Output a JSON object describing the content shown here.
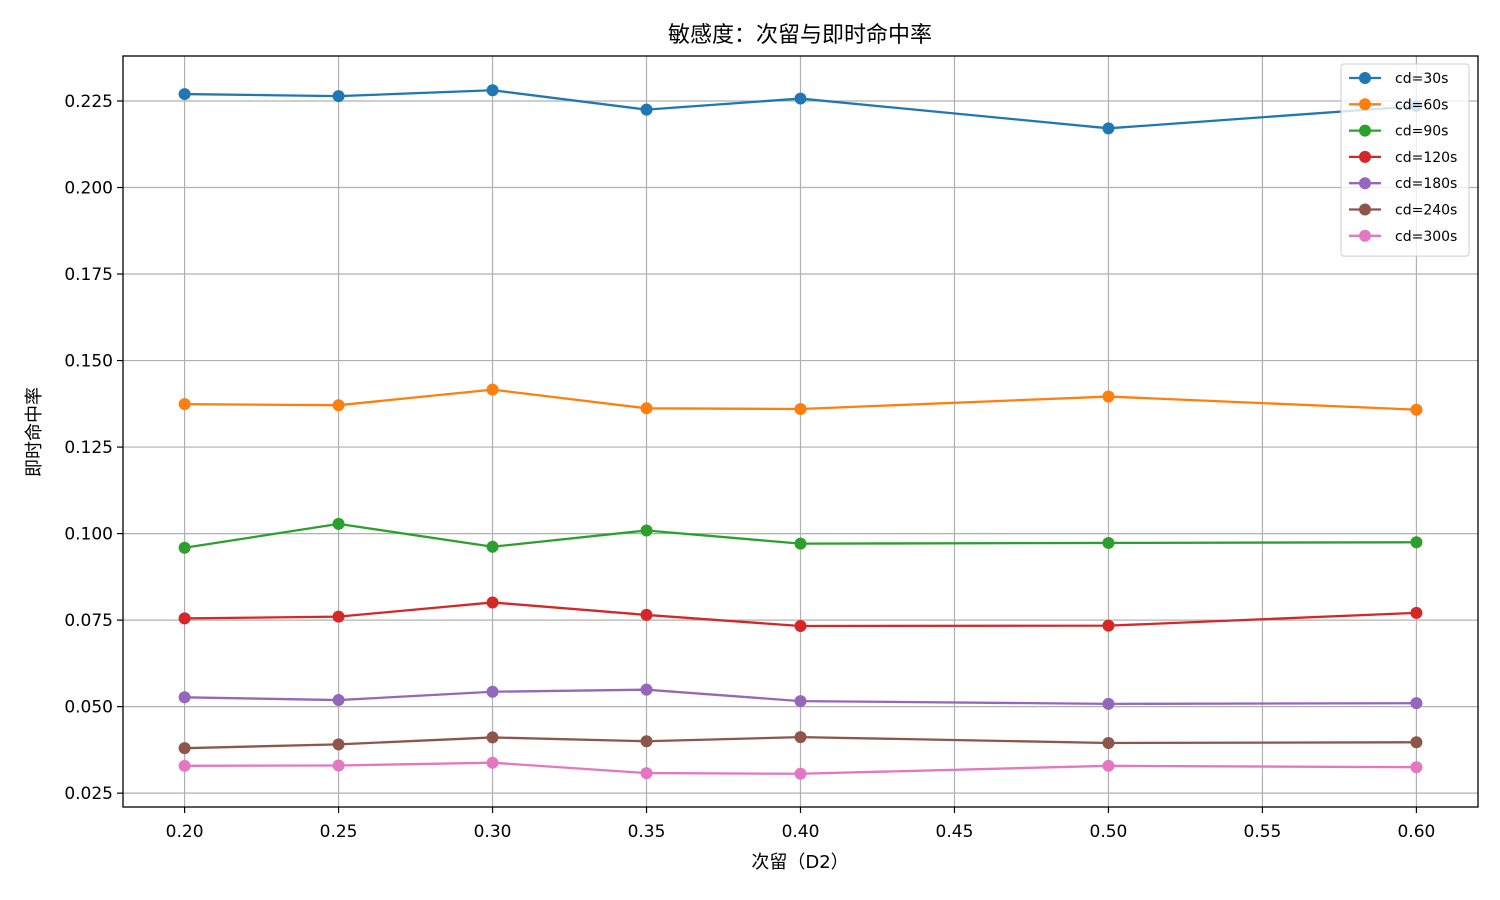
{
  "chart_data": {
    "type": "line",
    "title": "敏感度：次留与即时命中率",
    "xlabel": "次留（D2）",
    "ylabel": "即时命中率",
    "x": [
      0.2,
      0.25,
      0.3,
      0.35,
      0.4,
      0.5,
      0.6
    ],
    "xlim": [
      0.18,
      0.62
    ],
    "ylim": [
      0.021,
      0.238
    ],
    "xticks": [
      "0.20",
      "0.25",
      "0.30",
      "0.35",
      "0.40",
      "0.45",
      "0.50",
      "0.55",
      "0.60"
    ],
    "yticks": [
      "0.025",
      "0.050",
      "0.075",
      "0.100",
      "0.125",
      "0.150",
      "0.175",
      "0.200",
      "0.225"
    ],
    "grid": true,
    "legend_position": "top-right",
    "series": [
      {
        "name": "cd=30s",
        "color": "#1f77b4",
        "values": [
          0.227,
          0.2264,
          0.2281,
          0.2225,
          0.2257,
          0.2171,
          0.2235
        ]
      },
      {
        "name": "cd=60s",
        "color": "#ff7f0e",
        "values": [
          0.1374,
          0.1371,
          0.1416,
          0.1362,
          0.136,
          0.1396,
          0.1358
        ]
      },
      {
        "name": "cd=90s",
        "color": "#2ca02c",
        "values": [
          0.0959,
          0.1028,
          0.0962,
          0.1009,
          0.0971,
          0.0973,
          0.0975
        ]
      },
      {
        "name": "cd=120s",
        "color": "#d62728",
        "values": [
          0.0755,
          0.076,
          0.0801,
          0.0765,
          0.0733,
          0.0734,
          0.0771
        ]
      },
      {
        "name": "cd=180s",
        "color": "#9467bd",
        "values": [
          0.0527,
          0.0519,
          0.0543,
          0.0549,
          0.0516,
          0.0508,
          0.051
        ]
      },
      {
        "name": "cd=240s",
        "color": "#8c564b",
        "values": [
          0.038,
          0.0391,
          0.0411,
          0.04,
          0.0412,
          0.0395,
          0.0397
        ]
      },
      {
        "name": "cd=300s",
        "color": "#e377c2",
        "values": [
          0.0329,
          0.033,
          0.0338,
          0.0308,
          0.0306,
          0.0329,
          0.0325
        ]
      }
    ]
  }
}
